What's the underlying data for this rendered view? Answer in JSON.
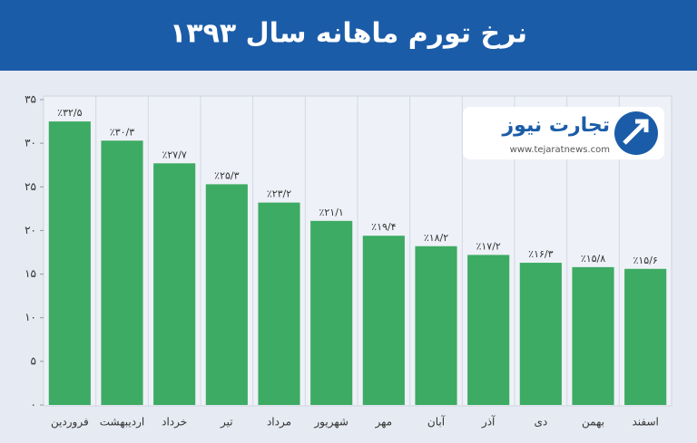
{
  "chart_data": {
    "type": "bar",
    "title": "نرخ تورم ماهانه سال ۱۳۹۳",
    "categories": [
      "فروردین",
      "اردیبهشت",
      "خرداد",
      "تیر",
      "مرداد",
      "شهریور",
      "مهر",
      "آبان",
      "آذر",
      "دی",
      "بهمن",
      "اسفند"
    ],
    "values": [
      32.5,
      30.3,
      27.7,
      25.3,
      23.2,
      21.1,
      19.4,
      18.2,
      17.2,
      16.3,
      15.8,
      15.6
    ],
    "value_labels": [
      "٪۳۲/۵",
      "٪۳۰/۳",
      "٪۲۷/۷",
      "٪۲۵/۳",
      "٪۲۳/۲",
      "٪۲۱/۱",
      "٪۱۹/۴",
      "٪۱۸/۲",
      "٪۱۷/۲",
      "٪۱۶/۳",
      "٪۱۵/۸",
      "٪۱۵/۶"
    ],
    "color": "#3dab63",
    "ylim": [
      0,
      35
    ],
    "yticks": [
      {
        "value": 0,
        "label": "۰"
      },
      {
        "value": 5,
        "label": "۵"
      },
      {
        "value": 10,
        "label": "۱۰"
      },
      {
        "value": 15,
        "label": "۱۵"
      },
      {
        "value": 20,
        "label": "۲۰"
      },
      {
        "value": 25,
        "label": "۲۵"
      },
      {
        "value": 30,
        "label": "۳۰"
      },
      {
        "value": 35,
        "label": "۳۵"
      }
    ],
    "grid": true
  },
  "logo": {
    "name": "تجارت نیوز",
    "url": "www.tejaratnews.com"
  }
}
